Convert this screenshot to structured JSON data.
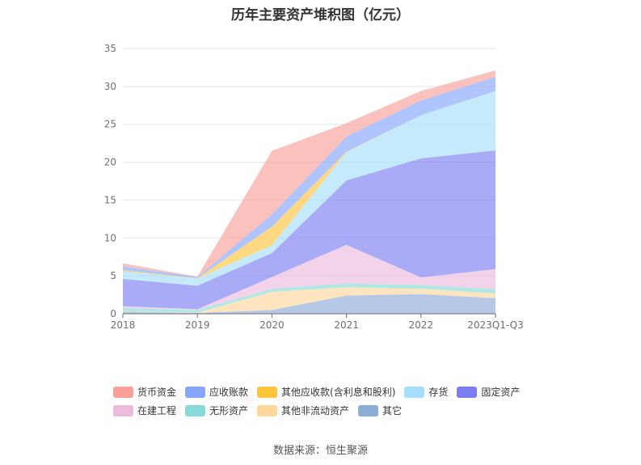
{
  "chart_data": {
    "type": "area",
    "stacked": true,
    "title": "历年主要资产堆积图（亿元）",
    "x": [
      "2018",
      "2019",
      "2020",
      "2021",
      "2022",
      "2023Q1-Q3"
    ],
    "ylim": [
      0,
      35
    ],
    "yticks": [
      0,
      5,
      10,
      15,
      20,
      25,
      30,
      35
    ],
    "grid": true,
    "legend_position": "bottom",
    "series": [
      {
        "name": "其它",
        "color": "#8eacd8",
        "values": [
          0.3,
          0.1,
          0.5,
          2.4,
          2.6,
          2.05
        ]
      },
      {
        "name": "其他非流动资产",
        "color": "#ffd79c",
        "values": [
          0.05,
          0.05,
          2.4,
          1.1,
          0.7,
          0.65
        ]
      },
      {
        "name": "无形资产",
        "color": "#86dbd9",
        "values": [
          0.45,
          0.35,
          0.4,
          0.5,
          0.5,
          0.55
        ]
      },
      {
        "name": "在建工程",
        "color": "#ebbcdd",
        "values": [
          0.2,
          0.1,
          1.55,
          5.1,
          1.0,
          2.65
        ]
      },
      {
        "name": "固定资产",
        "color": "#7b7ef3",
        "values": [
          3.6,
          3.1,
          3.15,
          8.5,
          15.7,
          15.65
        ]
      },
      {
        "name": "存货",
        "color": "#a6dffb",
        "values": [
          1.0,
          0.95,
          1.05,
          3.7,
          5.7,
          7.85
        ]
      },
      {
        "name": "其他应收款(含利息和股利)",
        "color": "#ffc53d",
        "values": [
          0.15,
          0.05,
          2.45,
          0.1,
          0,
          0
        ]
      },
      {
        "name": "应收账款",
        "color": "#86a6fc",
        "values": [
          0.5,
          0.15,
          1.6,
          2.0,
          1.95,
          1.85
        ]
      },
      {
        "name": "货币资金",
        "color": "#f9a199",
        "values": [
          0.4,
          0.05,
          8.4,
          1.75,
          1.25,
          0.85
        ]
      }
    ],
    "legend_order": [
      "货币资金",
      "应收账款",
      "其他应收款(含利息和股利)",
      "存货",
      "固定资产",
      "在建工程",
      "无形资产",
      "其他非流动资产",
      "其它"
    ]
  },
  "source": "数据来源：恒生聚源"
}
